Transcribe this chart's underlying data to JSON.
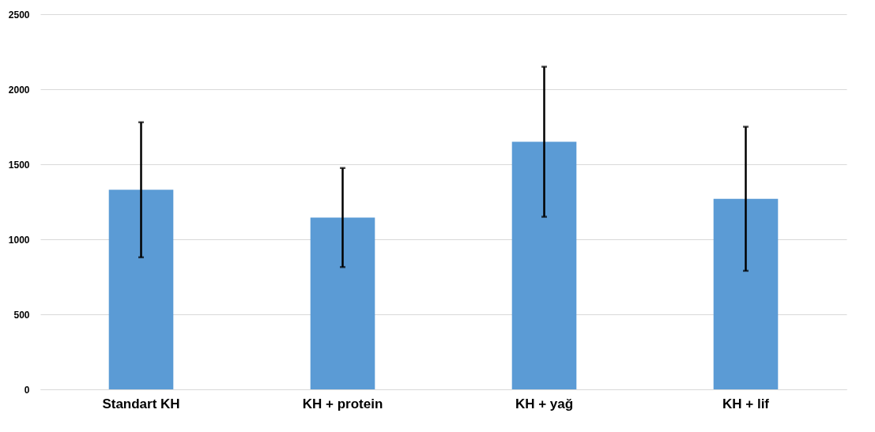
{
  "chart_data": {
    "type": "bar",
    "categories": [
      "Standart KH",
      "KH + protein",
      "KH + yağ",
      "KH + lif"
    ],
    "values": [
      1330,
      1145,
      1650,
      1270
    ],
    "errors": [
      450,
      330,
      500,
      480
    ],
    "color": "#5b9bd5",
    "ylim": [
      0,
      2500
    ],
    "yticks": [
      0,
      500,
      1000,
      1500,
      2000,
      2500
    ],
    "grid": "y"
  }
}
